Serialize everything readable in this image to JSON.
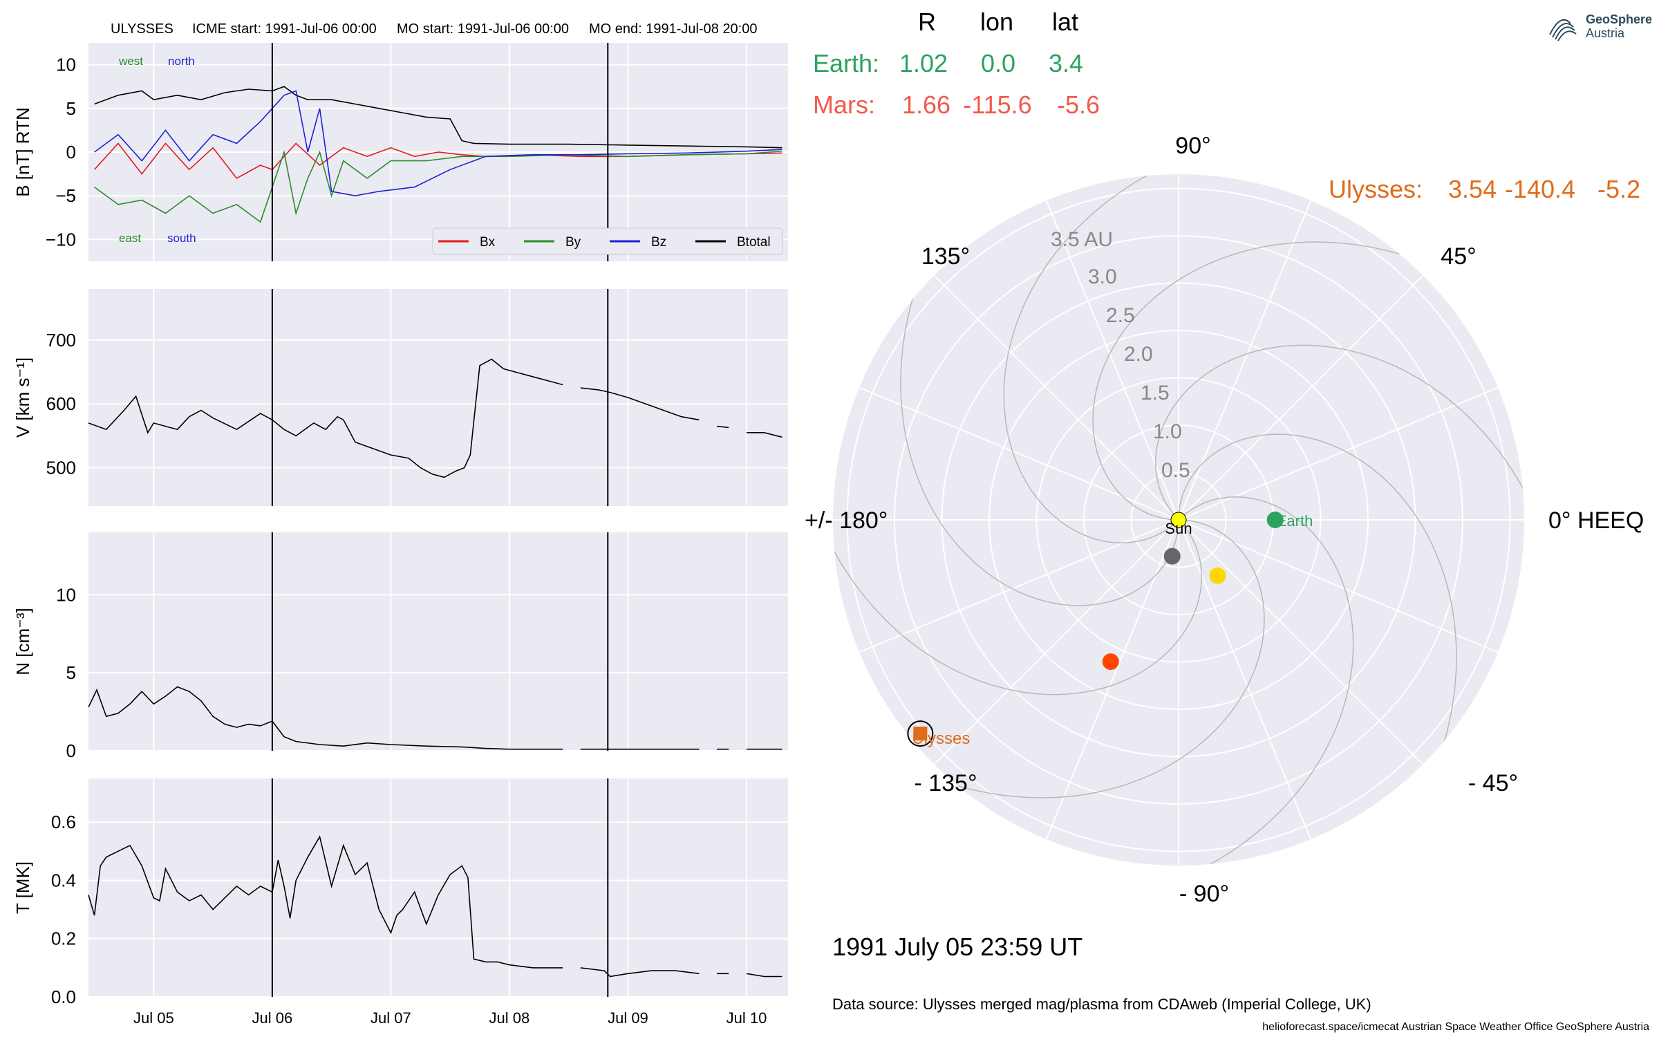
{
  "header": {
    "spacecraft": "ULYSSES",
    "icme_start": "ICME start: 1991-Jul-06 00:00",
    "mo_start": "MO start: 1991-Jul-06 00:00",
    "mo_end": "MO end: 1991-Jul-08 20:00"
  },
  "table": {
    "col_r": "R",
    "col_lon": "lon",
    "col_lat": "lat",
    "rows": [
      {
        "name": "Earth:",
        "r": "1.02",
        "lon": "0.0",
        "lat": "3.4",
        "color": "#2ca25f"
      },
      {
        "name": "Mars:",
        "r": "1.66",
        "lon": "-115.6",
        "lat": "-5.6",
        "color": "#f05a4a"
      }
    ],
    "ulysses": {
      "name": "Ulysses:",
      "r": "3.54",
      "lon": "-140.4",
      "lat": "-5.2",
      "color": "#e06b1a"
    }
  },
  "date_label": "1991 July 05  23:59 UT",
  "data_source": "Data source: Ulysses merged mag/plasma from CDAweb (Imperial College, UK)",
  "footer": "helioforecast.space/icmecat   Austrian Space Weather Office   GeoSphere Austria",
  "logo": {
    "line1": "GeoSphere",
    "line2": "Austria"
  },
  "colors": {
    "panel_bg": "#eaeaf2",
    "grid": "#ffffff",
    "bx": "#e31a1c",
    "by": "#2b8c2b",
    "bz": "#1f1fd6",
    "btotal": "#000000"
  },
  "chart_data": [
    {
      "type": "line",
      "panel": "B",
      "ylabel": "B [nT] RTN",
      "ylim": [
        -12.5,
        12.5
      ],
      "yticks": [
        "10",
        "5",
        "0",
        "−5",
        "−10"
      ],
      "xticks": [
        "Jul 05",
        "Jul 06",
        "Jul 07",
        "Jul 08",
        "Jul 09",
        "Jul 10"
      ],
      "annotations": {
        "west": "west",
        "north": "north",
        "east": "east",
        "south": "south"
      },
      "legend": {
        "position": "bottom-right",
        "entries": [
          "Bx",
          "By",
          "Bz",
          "Btotal"
        ]
      },
      "series": [
        {
          "name": "Btotal",
          "x": [
            4.5,
            4.7,
            4.9,
            5.0,
            5.2,
            5.4,
            5.6,
            5.8,
            6.0,
            6.1,
            6.2,
            6.3,
            6.5,
            6.7,
            6.9,
            7.1,
            7.3,
            7.5,
            7.6,
            7.7,
            8.0,
            8.5,
            9.0,
            9.5,
            10.0,
            10.3
          ],
          "y": [
            5.5,
            6.5,
            7.0,
            6.0,
            6.5,
            6.0,
            6.8,
            7.2,
            7.0,
            7.5,
            6.5,
            6.0,
            6.0,
            5.5,
            5.0,
            4.5,
            4.0,
            3.8,
            1.3,
            1.0,
            0.9,
            0.9,
            0.8,
            0.7,
            0.6,
            0.5
          ]
        },
        {
          "name": "Bx",
          "x": [
            4.5,
            4.7,
            4.9,
            5.1,
            5.3,
            5.5,
            5.7,
            5.9,
            6.0,
            6.2,
            6.4,
            6.6,
            6.8,
            7.0,
            7.2,
            7.4,
            7.6,
            7.8,
            8.2,
            8.6,
            9.0,
            9.5,
            10.0,
            10.3
          ],
          "y": [
            -2.0,
            1.0,
            -2.5,
            1.0,
            -2.0,
            0.5,
            -3.0,
            -1.5,
            -2.0,
            1.0,
            -1.5,
            0.5,
            -0.5,
            0.5,
            -0.5,
            0.0,
            -0.3,
            -0.5,
            -0.3,
            -0.5,
            -0.5,
            -0.3,
            -0.2,
            -0.1
          ]
        },
        {
          "name": "By",
          "x": [
            4.5,
            4.7,
            4.9,
            5.1,
            5.3,
            5.5,
            5.7,
            5.9,
            6.0,
            6.1,
            6.2,
            6.3,
            6.4,
            6.5,
            6.6,
            6.8,
            7.0,
            7.3,
            7.6,
            8.0,
            8.5,
            9.0,
            9.5,
            10.0,
            10.3
          ],
          "y": [
            -4.0,
            -6.0,
            -5.5,
            -7.0,
            -5.0,
            -7.0,
            -6.0,
            -8.0,
            -4.0,
            0.0,
            -7.0,
            -3.0,
            0.0,
            -5.0,
            -1.0,
            -3.0,
            -1.0,
            -1.0,
            -0.5,
            -0.5,
            -0.3,
            -0.5,
            -0.3,
            -0.2,
            0.1
          ]
        },
        {
          "name": "Bz",
          "x": [
            4.5,
            4.7,
            4.9,
            5.1,
            5.3,
            5.5,
            5.7,
            5.9,
            6.0,
            6.1,
            6.2,
            6.3,
            6.4,
            6.5,
            6.7,
            6.9,
            7.2,
            7.5,
            7.8,
            8.2,
            8.6,
            9.0,
            9.5,
            10.0,
            10.3
          ],
          "y": [
            0.0,
            2.0,
            -1.0,
            2.5,
            -1.0,
            2.0,
            1.0,
            3.5,
            5.0,
            6.5,
            7.0,
            0.0,
            5.0,
            -4.5,
            -5.0,
            -4.5,
            -4.0,
            -2.0,
            -0.5,
            -0.3,
            -0.3,
            -0.2,
            -0.1,
            0.1,
            0.3
          ]
        }
      ]
    },
    {
      "type": "line",
      "panel": "V",
      "ylabel": "V [km s⁻¹]",
      "ylim": [
        440,
        780
      ],
      "yticks": [
        "700",
        "600",
        "500"
      ],
      "series": [
        {
          "name": "V",
          "segments": [
            {
              "x": [
                4.45,
                4.6,
                4.75,
                4.85,
                4.95,
                5.0,
                5.1,
                5.2,
                5.3,
                5.4,
                5.5,
                5.7,
                5.9,
                6.0,
                6.1,
                6.2,
                6.35,
                6.45,
                6.55,
                6.6,
                6.7,
                6.85,
                7.0,
                7.15,
                7.25,
                7.35,
                7.45,
                7.55,
                7.62,
                7.67,
                7.75,
                7.85,
                7.95,
                8.05,
                8.15,
                8.25,
                8.35,
                8.45
              ],
              "y": [
                570,
                560,
                590,
                612,
                555,
                570,
                565,
                560,
                580,
                590,
                578,
                560,
                585,
                575,
                560,
                550,
                570,
                560,
                580,
                575,
                540,
                530,
                520,
                515,
                500,
                490,
                485,
                495,
                500,
                520,
                660,
                670,
                655,
                650,
                645,
                640,
                635,
                630
              ]
            },
            {
              "x": [
                8.6,
                8.75,
                8.85,
                9.0,
                9.15,
                9.3,
                9.45,
                9.6
              ],
              "y": [
                625,
                622,
                618,
                610,
                600,
                590,
                580,
                575
              ]
            },
            {
              "x": [
                9.75,
                9.85
              ],
              "y": [
                565,
                563
              ]
            },
            {
              "x": [
                10.0,
                10.15,
                10.3
              ],
              "y": [
                555,
                555,
                548
              ]
            }
          ]
        }
      ]
    },
    {
      "type": "line",
      "panel": "N",
      "ylabel": "N [cm⁻³]",
      "ylim": [
        0,
        14
      ],
      "yticks": [
        "10",
        "5",
        "0"
      ],
      "series": [
        {
          "name": "N",
          "segments": [
            {
              "x": [
                4.45,
                4.52,
                4.6,
                4.7,
                4.8,
                4.9,
                5.0,
                5.1,
                5.2,
                5.3,
                5.4,
                5.5,
                5.6,
                5.7,
                5.8,
                5.9,
                6.0,
                6.05,
                6.1,
                6.2,
                6.4,
                6.6,
                6.8,
                7.0,
                7.3,
                7.6,
                7.8,
                8.0,
                8.3,
                8.45
              ],
              "y": [
                2.8,
                3.9,
                2.2,
                2.4,
                3.0,
                3.8,
                3.0,
                3.5,
                4.1,
                3.8,
                3.2,
                2.2,
                1.7,
                1.5,
                1.7,
                1.6,
                1.9,
                1.4,
                0.9,
                0.6,
                0.4,
                0.3,
                0.5,
                0.4,
                0.3,
                0.25,
                0.15,
                0.1,
                0.1,
                0.1
              ]
            },
            {
              "x": [
                8.6,
                9.0,
                9.6
              ],
              "y": [
                0.1,
                0.1,
                0.1
              ]
            },
            {
              "x": [
                9.75,
                9.85
              ],
              "y": [
                0.1,
                0.1
              ]
            },
            {
              "x": [
                10.0,
                10.3
              ],
              "y": [
                0.1,
                0.1
              ]
            }
          ]
        }
      ]
    },
    {
      "type": "line",
      "panel": "T",
      "ylabel": "T [MK]",
      "ylim": [
        0,
        0.75
      ],
      "yticks": [
        "0.6",
        "0.4",
        "0.2",
        "0.0"
      ],
      "xticks": [
        "Jul 05",
        "Jul 06",
        "Jul 07",
        "Jul 08",
        "Jul 09",
        "Jul 10"
      ],
      "series": [
        {
          "name": "T",
          "segments": [
            {
              "x": [
                4.45,
                4.5,
                4.55,
                4.6,
                4.7,
                4.8,
                4.9,
                5.0,
                5.05,
                5.1,
                5.2,
                5.3,
                5.4,
                5.5,
                5.6,
                5.7,
                5.8,
                5.9,
                6.0,
                6.05,
                6.1,
                6.15,
                6.2,
                6.3,
                6.4,
                6.5,
                6.6,
                6.7,
                6.8,
                6.9,
                7.0,
                7.05,
                7.1,
                7.2,
                7.3,
                7.4,
                7.5,
                7.6,
                7.65,
                7.7,
                7.8,
                7.9,
                8.0,
                8.2,
                8.45
              ],
              "y": [
                0.35,
                0.28,
                0.45,
                0.48,
                0.5,
                0.52,
                0.45,
                0.34,
                0.33,
                0.44,
                0.36,
                0.33,
                0.35,
                0.3,
                0.34,
                0.38,
                0.35,
                0.38,
                0.36,
                0.47,
                0.38,
                0.27,
                0.4,
                0.48,
                0.55,
                0.38,
                0.52,
                0.42,
                0.46,
                0.3,
                0.22,
                0.28,
                0.3,
                0.36,
                0.25,
                0.35,
                0.42,
                0.45,
                0.41,
                0.13,
                0.12,
                0.12,
                0.11,
                0.1,
                0.1
              ]
            },
            {
              "x": [
                8.6,
                8.8,
                8.85,
                9.0,
                9.2,
                9.4,
                9.6
              ],
              "y": [
                0.1,
                0.09,
                0.07,
                0.08,
                0.09,
                0.09,
                0.08
              ]
            },
            {
              "x": [
                9.75,
                9.85
              ],
              "y": [
                0.08,
                0.08
              ]
            },
            {
              "x": [
                10.0,
                10.15,
                10.3
              ],
              "y": [
                0.08,
                0.07,
                0.07
              ]
            }
          ]
        }
      ]
    },
    {
      "type": "scatter",
      "panel": "polar",
      "r_ticks": [
        "0.5",
        "1.0",
        "1.5",
        "2.0",
        "2.5",
        "3.0",
        "3.5 AU"
      ],
      "angle_labels": [
        "90°",
        "45°",
        "0° HEEQ",
        "- 45°",
        "- 90°",
        "- 135°",
        "+/- 180°",
        "135°"
      ],
      "points": [
        {
          "name": "Sun",
          "r": 0,
          "lon": 0,
          "color": "#ffff00"
        },
        {
          "name": "Earth",
          "r": 1.02,
          "lon": 0.0,
          "color": "#2ca25f"
        },
        {
          "name": "",
          "r": 0.72,
          "lon": -55,
          "color": "#ffd700"
        },
        {
          "name": "",
          "r": 0.39,
          "lon": -100,
          "color": "#666666"
        },
        {
          "name": "",
          "r": 1.66,
          "lon": -115.6,
          "color": "#ff4500"
        },
        {
          "name": "Ulysses",
          "r": 3.54,
          "lon": -140.4,
          "color": "#e06b1a"
        }
      ]
    }
  ]
}
